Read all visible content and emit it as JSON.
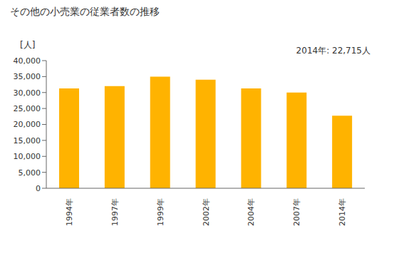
{
  "chart_data": {
    "type": "bar",
    "title": "その他の小売業の従業者数の推移",
    "y_label": "[人]",
    "annotation": "2014年: 22,715人",
    "categories": [
      "1994年",
      "1997年",
      "1999年",
      "2002年",
      "2004年",
      "2007年",
      "2014年"
    ],
    "values": [
      31300,
      32000,
      35000,
      34000,
      31300,
      30000,
      22715
    ],
    "color": "#ffb300",
    "ylim": [
      0,
      40000
    ],
    "yticks": [
      0,
      {
        "value": 5000,
        "label": "5,000"
      },
      {
        "value": 10000,
        "label": "10,000"
      },
      {
        "value": 15000,
        "label": "15,000"
      },
      {
        "value": 20000,
        "label": "20,000"
      },
      {
        "value": 25000,
        "label": "25,000"
      },
      {
        "value": 30000,
        "label": "30,000"
      },
      {
        "value": 35000,
        "label": "35,000"
      },
      {
        "value": 40000,
        "label": "40,000"
      }
    ],
    "grid": false
  }
}
